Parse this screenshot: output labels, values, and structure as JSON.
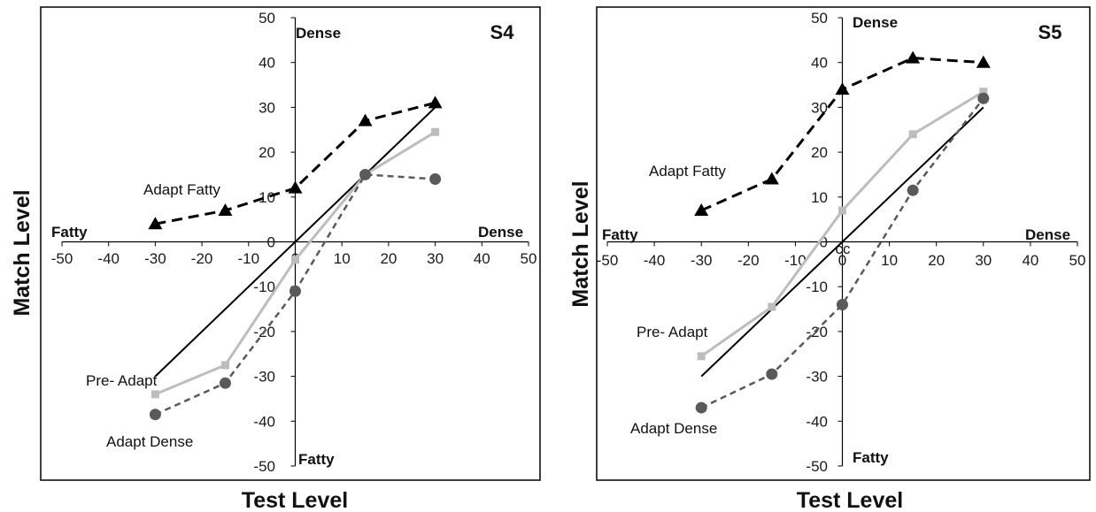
{
  "colors": {
    "adapt_fatty": "#000000",
    "adapt_dense": "#5a5a5a",
    "pre_adapt": "#bdbdbd",
    "identity": "#000000",
    "frame": "#000000"
  },
  "chart_data": [
    {
      "type": "line",
      "title": "S4",
      "xlabel": "Test Level",
      "ylabel": "Match Level",
      "xlim": [
        -50,
        50
      ],
      "ylim": [
        -50,
        50
      ],
      "xticks": [
        "-50",
        "-40",
        "-30",
        "-20",
        "-10",
        "0",
        "10",
        "20",
        "30",
        "40",
        "50"
      ],
      "yticks": [
        "50",
        "40",
        "30",
        "20",
        "10",
        "0",
        "-10",
        "-20",
        "-30",
        "-40",
        "-50"
      ],
      "extra_labels": [],
      "corners": {
        "top": "Dense",
        "bottom": "Fatty",
        "left": "Fatty",
        "right": "Dense"
      },
      "identity_line": {
        "x": [
          -30,
          30
        ],
        "y": [
          -30,
          30
        ]
      },
      "series": [
        {
          "name": "Adapt Fatty",
          "marker": "triangle",
          "dash": "dashed",
          "x": [
            -30,
            -15,
            0,
            15,
            30
          ],
          "y": [
            4,
            7,
            12,
            27,
            31
          ]
        },
        {
          "name": "Pre- Adapt",
          "marker": "square",
          "dash": "solid",
          "x": [
            -30,
            -15,
            0,
            15,
            30
          ],
          "y": [
            -34,
            -27.5,
            -4,
            15,
            24.5
          ]
        },
        {
          "name": "Adapt Dense",
          "marker": "circle",
          "dash": "dashed",
          "x": [
            -30,
            -15,
            0,
            15,
            30
          ],
          "y": [
            -38.5,
            -31.5,
            -11,
            15,
            14
          ]
        }
      ]
    },
    {
      "type": "line",
      "title": "S5",
      "xlabel": "Test Level",
      "ylabel": "Match Level",
      "xlim": [
        -50,
        50
      ],
      "ylim": [
        -50,
        50
      ],
      "xticks": [
        "-50",
        "-40",
        "-30",
        "-20",
        "-10",
        "0",
        "10",
        "20",
        "30",
        "40",
        "50"
      ],
      "yticks": [
        "50",
        "40",
        "30",
        "20",
        "10",
        "0",
        "-10",
        "-20",
        "-30",
        "-40",
        "-50"
      ],
      "extra_labels": [
        "cc"
      ],
      "corners": {
        "top": "Dense",
        "bottom": "Fatty",
        "left": "Fatty",
        "right": "Dense"
      },
      "identity_line": {
        "x": [
          -30,
          30
        ],
        "y": [
          -30,
          30
        ]
      },
      "series": [
        {
          "name": "Adapt Fatty",
          "marker": "triangle",
          "dash": "dashed",
          "x": [
            -30,
            -15,
            0,
            15,
            30
          ],
          "y": [
            7,
            14,
            34,
            41,
            40
          ]
        },
        {
          "name": "Pre- Adapt",
          "marker": "square",
          "dash": "solid",
          "x": [
            -30,
            -15,
            0,
            15,
            30
          ],
          "y": [
            -25.5,
            -14.5,
            7,
            24,
            33.5
          ]
        },
        {
          "name": "Adapt Dense",
          "marker": "circle",
          "dash": "dashed",
          "x": [
            -30,
            -15,
            0,
            15,
            30
          ],
          "y": [
            -37,
            -29.5,
            -14,
            11.5,
            32
          ]
        }
      ]
    }
  ]
}
